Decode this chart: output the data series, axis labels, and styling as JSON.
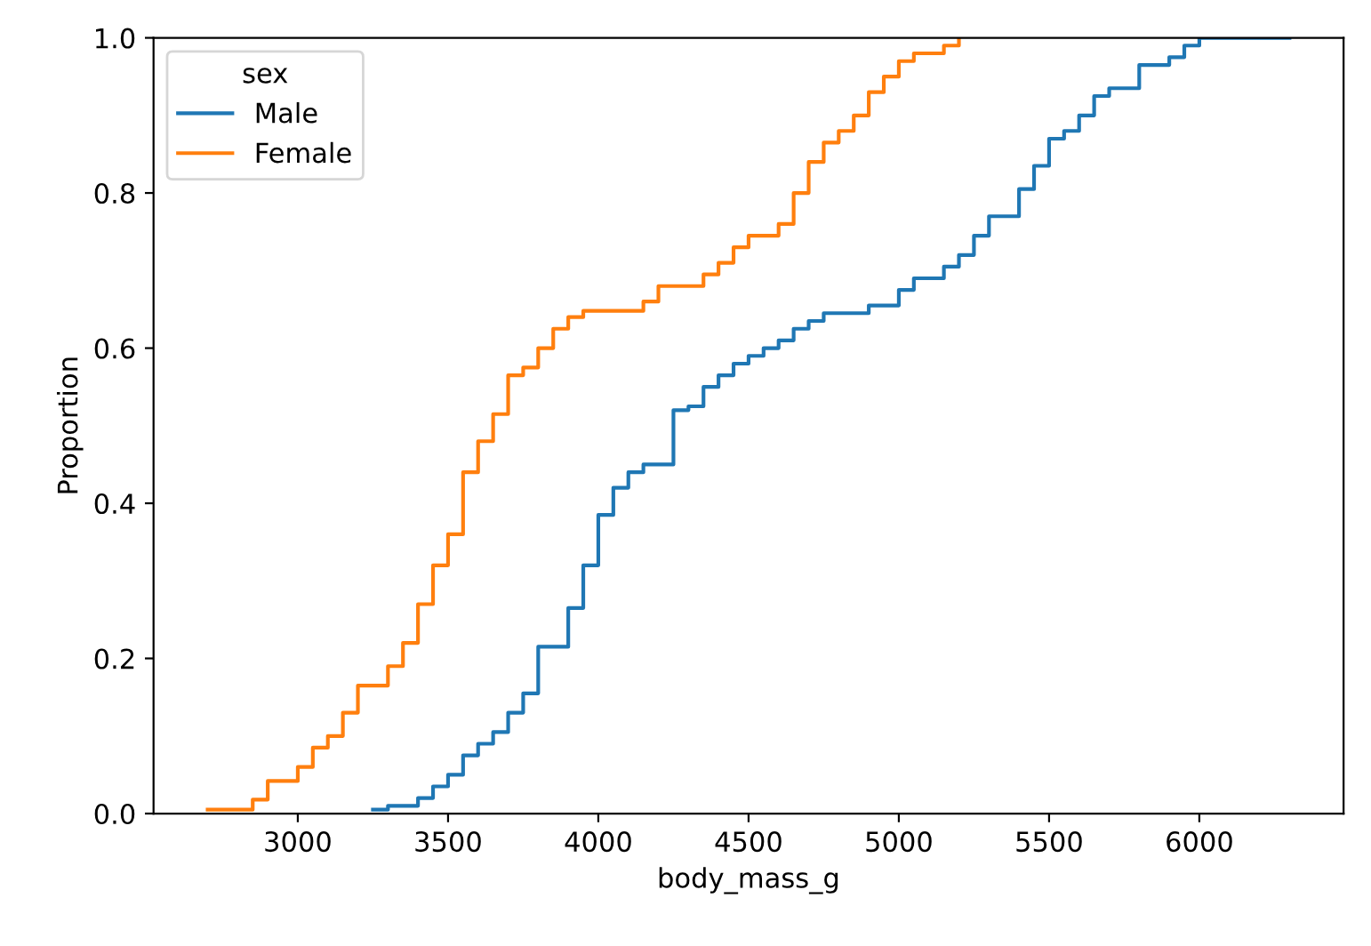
{
  "chart_data": {
    "type": "step",
    "xlabel": "body_mass_g",
    "ylabel": "Proportion",
    "legend_title": "sex",
    "legend": "top left",
    "grid": false,
    "xlim": [
      2520,
      6480
    ],
    "xticks": [
      3000,
      3500,
      4000,
      4500,
      5000,
      5500,
      6000
    ],
    "ylim": [
      0,
      1
    ],
    "yticks": [
      {
        "value": 0,
        "label": "0.0"
      },
      {
        "value": 0.2,
        "label": "0.2"
      },
      {
        "value": 0.4,
        "label": "0.4"
      },
      {
        "value": 0.6,
        "label": "0.6"
      },
      {
        "value": 0.8,
        "label": "0.8"
      },
      {
        "value": 1,
        "label": "1.0"
      }
    ],
    "series": [
      {
        "name": "Male",
        "color": "#1f77b4",
        "x": [
          3250,
          3300,
          3400,
          3450,
          3500,
          3550,
          3600,
          3650,
          3700,
          3750,
          3800,
          3900,
          3950,
          4000,
          4050,
          4100,
          4150,
          4250,
          4300,
          4350,
          4400,
          4450,
          4500,
          4550,
          4600,
          4650,
          4700,
          4750,
          4900,
          5000,
          5050,
          5150,
          5200,
          5250,
          5300,
          5400,
          5450,
          5500,
          5550,
          5600,
          5650,
          5700,
          5800,
          5900,
          5950,
          6000,
          6300
        ],
        "values": [
          0.005,
          0.01,
          0.02,
          0.035,
          0.05,
          0.075,
          0.09,
          0.105,
          0.13,
          0.155,
          0.215,
          0.265,
          0.32,
          0.385,
          0.42,
          0.44,
          0.45,
          0.52,
          0.525,
          0.55,
          0.565,
          0.58,
          0.59,
          0.6,
          0.61,
          0.625,
          0.635,
          0.645,
          0.655,
          0.675,
          0.69,
          0.705,
          0.72,
          0.745,
          0.77,
          0.805,
          0.835,
          0.87,
          0.88,
          0.9,
          0.925,
          0.935,
          0.965,
          0.975,
          0.99,
          1.0,
          1.0
        ]
      },
      {
        "name": "Female",
        "color": "#ff7f0e",
        "x": [
          2700,
          2850,
          2900,
          3000,
          3050,
          3100,
          3150,
          3200,
          3300,
          3350,
          3400,
          3450,
          3500,
          3550,
          3600,
          3650,
          3700,
          3750,
          3800,
          3850,
          3900,
          3950,
          4150,
          4200,
          4350,
          4400,
          4450,
          4500,
          4600,
          4650,
          4700,
          4750,
          4800,
          4850,
          4900,
          4950,
          5000,
          5050,
          5150,
          5200
        ],
        "values": [
          0.005,
          0.018,
          0.042,
          0.06,
          0.085,
          0.1,
          0.13,
          0.165,
          0.19,
          0.22,
          0.27,
          0.32,
          0.36,
          0.44,
          0.48,
          0.515,
          0.565,
          0.575,
          0.6,
          0.625,
          0.64,
          0.648,
          0.66,
          0.68,
          0.695,
          0.71,
          0.73,
          0.745,
          0.76,
          0.8,
          0.84,
          0.865,
          0.88,
          0.9,
          0.93,
          0.95,
          0.97,
          0.98,
          0.99,
          1.0
        ]
      }
    ]
  }
}
